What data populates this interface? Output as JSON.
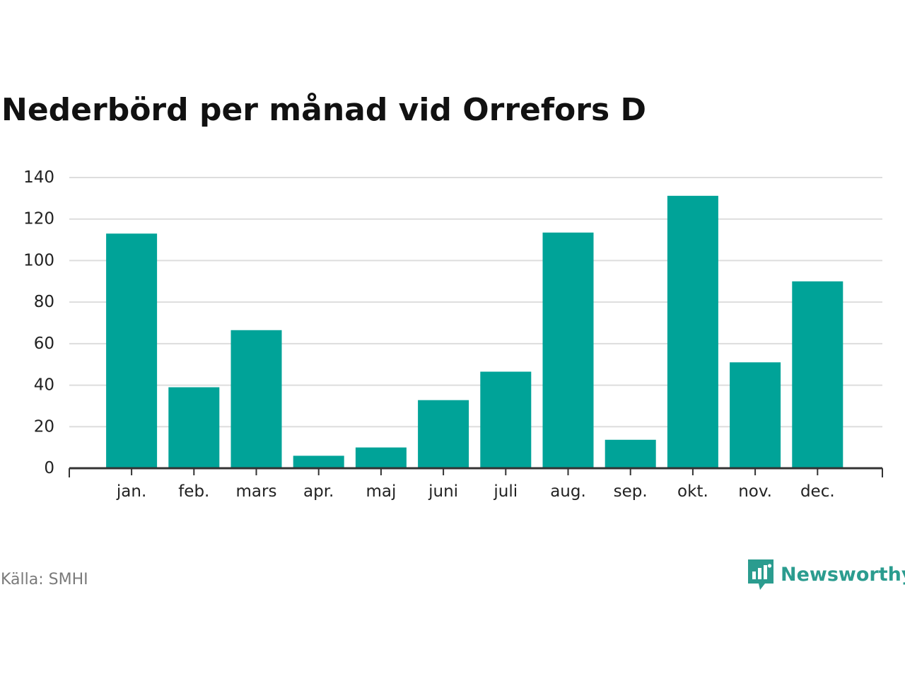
{
  "title": "Nederbörd per månad vid Orrefors D",
  "source": "Källa: SMHI",
  "brand": {
    "name": "Newsworthy",
    "icon": "newsworthy-logo-icon",
    "color": "#2b9c8f"
  },
  "colors": {
    "bar": "#00a398",
    "grid": "#dddddd",
    "axis": "#333333",
    "text": "#222222"
  },
  "chart_data": {
    "type": "bar",
    "title": "Nederbörd per månad vid Orrefors D",
    "xlabel": "",
    "ylabel": "",
    "categories": [
      "jan.",
      "feb.",
      "mars",
      "apr.",
      "maj",
      "juni",
      "juli",
      "aug.",
      "sep.",
      "okt.",
      "nov.",
      "dec."
    ],
    "values": [
      113,
      39,
      66.5,
      6,
      10,
      32.8,
      46.5,
      113.5,
      13.7,
      131.2,
      51,
      90
    ],
    "ylim": [
      0,
      140
    ],
    "yticks": [
      "0",
      "20",
      "40",
      "60",
      "80",
      "100",
      "120",
      "140"
    ],
    "grid": true,
    "legend": "none"
  }
}
